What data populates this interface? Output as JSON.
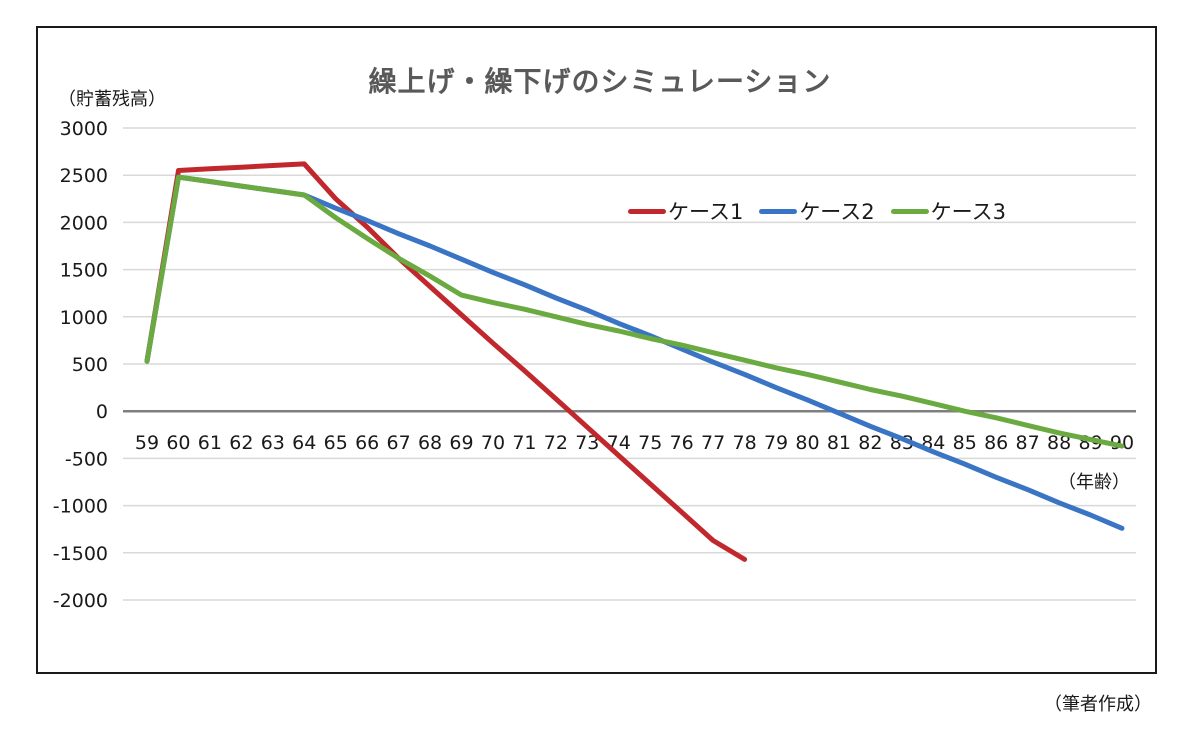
{
  "chart_data": {
    "type": "line",
    "title": "繰上げ・繰下げのシミュレーション",
    "ylabel": "（貯蓄残高）",
    "xlabel": "（年齢）",
    "source_note": "（筆者作成）",
    "ylim": [
      -2000,
      3000
    ],
    "y_ticks": [
      3000,
      2500,
      2000,
      1500,
      1000,
      500,
      0,
      -500,
      -1000,
      -1500,
      -2000
    ],
    "x": [
      59,
      60,
      61,
      62,
      63,
      64,
      65,
      66,
      67,
      68,
      69,
      70,
      71,
      72,
      73,
      74,
      75,
      76,
      77,
      78,
      79,
      80,
      81,
      82,
      83,
      84,
      85,
      86,
      87,
      88,
      89,
      90
    ],
    "grid": true,
    "legend_position": "upper-right-inside",
    "series": [
      {
        "name": "ケース1",
        "color": "#C0282D",
        "values": [
          530,
          2550,
          2568,
          2585,
          2603,
          2620,
          2250,
          1950,
          1620,
          1320,
          1020,
          720,
          430,
          130,
          -170,
          -470,
          -770,
          -1070,
          -1370,
          -1570,
          null,
          null,
          null,
          null,
          null,
          null,
          null,
          null,
          null,
          null,
          null,
          null
        ]
      },
      {
        "name": "ケース2",
        "color": "#3A74C4",
        "values": [
          530,
          2480,
          2433,
          2385,
          2338,
          2290,
          2150,
          2020,
          1880,
          1750,
          1610,
          1470,
          1340,
          1200,
          1070,
          930,
          800,
          660,
          520,
          390,
          250,
          120,
          -20,
          -160,
          -290,
          -430,
          -560,
          -700,
          -830,
          -970,
          -1100,
          -1240
        ]
      },
      {
        "name": "ケース3",
        "color": "#6AAA40",
        "values": [
          530,
          2480,
          2433,
          2385,
          2338,
          2290,
          2050,
          1830,
          1620,
          1430,
          1230,
          1150,
          1080,
          1000,
          920,
          850,
          770,
          700,
          620,
          540,
          460,
          390,
          310,
          230,
          160,
          80,
          0,
          -70,
          -150,
          -230,
          -300,
          -370
        ]
      }
    ]
  },
  "legend": {
    "items": [
      {
        "label": "ケース1",
        "color": "#C0282D"
      },
      {
        "label": "ケース2",
        "color": "#3A74C4"
      },
      {
        "label": "ケース3",
        "color": "#6AAA40"
      }
    ]
  }
}
